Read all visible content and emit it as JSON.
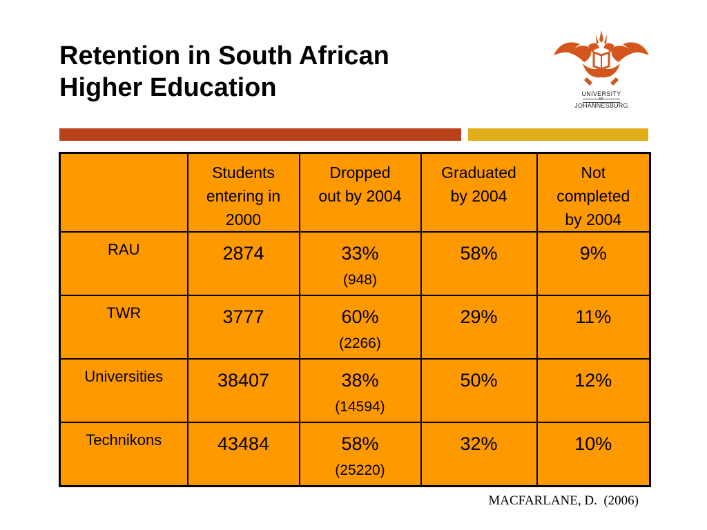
{
  "slide": {
    "title_lines": [
      "Retention in South African",
      "Higher Education"
    ],
    "citation": "MACFARLANE, D.  (2006)"
  },
  "logo": {
    "line1": "UNIVERSITY",
    "line2": "OF",
    "line3": "JOHANNESBURG",
    "colors": {
      "emblem": "#d4561c"
    }
  },
  "accent_bars": {
    "left_color": "#b8401a",
    "right_color": "#e2ad1a"
  },
  "table": {
    "background_color": "#ff9900",
    "header": {
      "corner": "",
      "columns": [
        [
          "Students",
          "entering in",
          "2000"
        ],
        [
          "Dropped",
          "out by 2004"
        ],
        [
          "Graduated",
          "by 2004"
        ],
        [
          "Not",
          "completed",
          "by 2004"
        ]
      ]
    },
    "rows": [
      {
        "label": "RAU",
        "students": "2874",
        "dropped": "33%",
        "dropped_count": "(948)",
        "graduated": "58%",
        "not_completed": "9%"
      },
      {
        "label": "TWR",
        "students": "3777",
        "dropped": "60%",
        "dropped_count": "(2266)",
        "graduated": "29%",
        "not_completed": "11%"
      },
      {
        "label": "Universities",
        "students": "38407",
        "dropped": "38%",
        "dropped_count": "(14594)",
        "graduated": "50%",
        "not_completed": "12%"
      },
      {
        "label": "Technikons",
        "students": "43484",
        "dropped": "58%",
        "dropped_count": "(25220)",
        "graduated": "32%",
        "not_completed": "10%"
      }
    ]
  }
}
